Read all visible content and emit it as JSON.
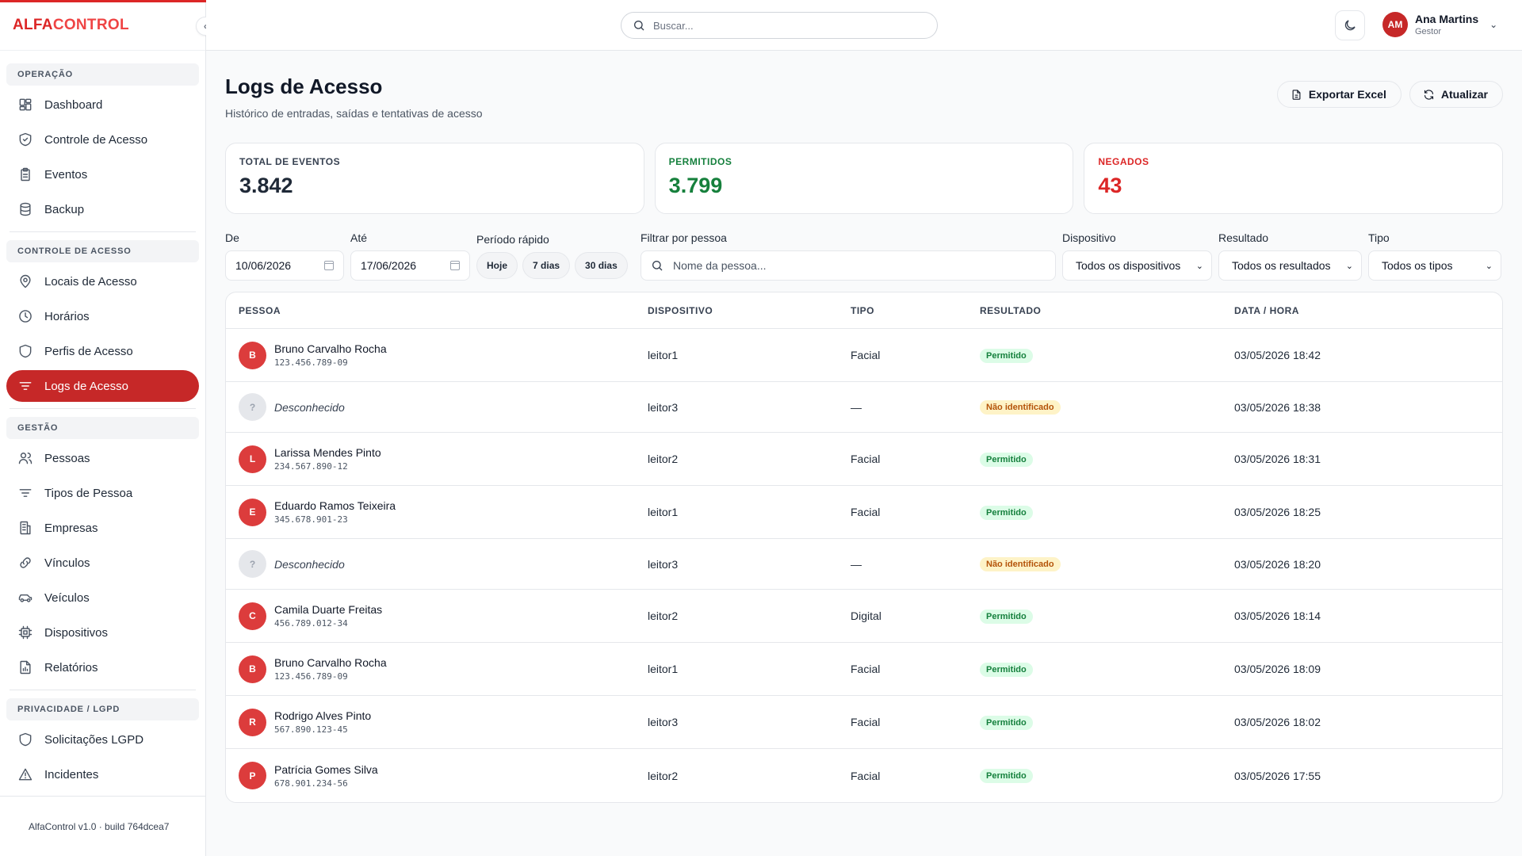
{
  "brand": {
    "part1": "ALFA",
    "part2": "CONTROL"
  },
  "sidebar": {
    "collapse_icon": "‹",
    "sections": [
      {
        "title": "OPERAÇÃO",
        "items": [
          {
            "label": "Dashboard",
            "icon": "dashboard-icon"
          },
          {
            "label": "Controle de Acesso",
            "icon": "shield-check-icon"
          },
          {
            "label": "Eventos",
            "icon": "clipboard-icon"
          },
          {
            "label": "Backup",
            "icon": "database-icon"
          }
        ]
      },
      {
        "title": "CONTROLE DE ACESSO",
        "items": [
          {
            "label": "Locais de Acesso",
            "icon": "map-pin-icon"
          },
          {
            "label": "Horários",
            "icon": "clock-icon"
          },
          {
            "label": "Perfis de Acesso",
            "icon": "shield-icon"
          },
          {
            "label": "Logs de Acesso",
            "icon": "filter-icon",
            "active": true
          }
        ]
      },
      {
        "title": "GESTÃO",
        "items": [
          {
            "label": "Pessoas",
            "icon": "users-icon"
          },
          {
            "label": "Tipos de Pessoa",
            "icon": "filter-icon"
          },
          {
            "label": "Empresas",
            "icon": "building-icon"
          },
          {
            "label": "Vínculos",
            "icon": "link-icon"
          },
          {
            "label": "Veículos",
            "icon": "car-icon"
          },
          {
            "label": "Dispositivos",
            "icon": "chip-icon"
          },
          {
            "label": "Relatórios",
            "icon": "report-icon"
          }
        ]
      },
      {
        "title": "PRIVACIDADE / LGPD",
        "items": [
          {
            "label": "Solicitações LGPD",
            "icon": "shield-icon"
          },
          {
            "label": "Incidentes",
            "icon": "alert-triangle-icon"
          }
        ]
      }
    ],
    "footer": "AlfaControl v1.0 · build 764dcea7"
  },
  "topbar": {
    "search_placeholder": "Buscar...",
    "user": {
      "initials": "AM",
      "name": "Ana Martins",
      "role": "Gestor"
    }
  },
  "page": {
    "title": "Logs de Acesso",
    "subtitle": "Histórico de entradas, saídas e tentativas de acesso",
    "export_label": "Exportar Excel",
    "refresh_label": "Atualizar"
  },
  "stats": [
    {
      "label": "TOTAL DE EVENTOS",
      "value": "3.842",
      "kind": "total"
    },
    {
      "label": "PERMITIDOS",
      "value": "3.799",
      "kind": "ok"
    },
    {
      "label": "NEGADOS",
      "value": "43",
      "kind": "bad"
    }
  ],
  "filters": {
    "from_label": "De",
    "from_value": "10/06/2026",
    "to_label": "Até",
    "to_value": "17/06/2026",
    "quick_label": "Período rápido",
    "quick": [
      "Hoje",
      "7 dias",
      "30 dias"
    ],
    "person_label": "Filtrar por pessoa",
    "person_placeholder": "Nome da pessoa...",
    "device_label": "Dispositivo",
    "device_value": "Todos os dispositivos",
    "result_label": "Resultado",
    "result_value": "Todos os resultados",
    "type_label": "Tipo",
    "type_value": "Todos os tipos"
  },
  "table": {
    "headers": [
      "PESSOA",
      "DISPOSITIVO",
      "TIPO",
      "RESULTADO",
      "DATA / HORA"
    ],
    "rows": [
      {
        "initial": "B",
        "name": "Bruno Carvalho Rocha",
        "doc": "123.456.789-09",
        "device": "leitor1",
        "type": "Facial",
        "result": "Permitido",
        "status": "ok",
        "datetime": "03/05/2026 18:42"
      },
      {
        "initial": "?",
        "name": "Desconhecido",
        "doc": "",
        "device": "leitor3",
        "type": "—",
        "result": "Não identificado",
        "status": "warn",
        "datetime": "03/05/2026 18:38"
      },
      {
        "initial": "L",
        "name": "Larissa Mendes Pinto",
        "doc": "234.567.890-12",
        "device": "leitor2",
        "type": "Facial",
        "result": "Permitido",
        "status": "ok",
        "datetime": "03/05/2026 18:31"
      },
      {
        "initial": "E",
        "name": "Eduardo Ramos Teixeira",
        "doc": "345.678.901-23",
        "device": "leitor1",
        "type": "Facial",
        "result": "Permitido",
        "status": "ok",
        "datetime": "03/05/2026 18:25"
      },
      {
        "initial": "?",
        "name": "Desconhecido",
        "doc": "",
        "device": "leitor3",
        "type": "—",
        "result": "Não identificado",
        "status": "warn",
        "datetime": "03/05/2026 18:20"
      },
      {
        "initial": "C",
        "name": "Camila Duarte Freitas",
        "doc": "456.789.012-34",
        "device": "leitor2",
        "type": "Digital",
        "result": "Permitido",
        "status": "ok",
        "datetime": "03/05/2026 18:14"
      },
      {
        "initial": "B",
        "name": "Bruno Carvalho Rocha",
        "doc": "123.456.789-09",
        "device": "leitor1",
        "type": "Facial",
        "result": "Permitido",
        "status": "ok",
        "datetime": "03/05/2026 18:09"
      },
      {
        "initial": "R",
        "name": "Rodrigo Alves Pinto",
        "doc": "567.890.123-45",
        "device": "leitor3",
        "type": "Facial",
        "result": "Permitido",
        "status": "ok",
        "datetime": "03/05/2026 18:02"
      },
      {
        "initial": "P",
        "name": "Patrícia Gomes Silva",
        "doc": "678.901.234-56",
        "device": "leitor2",
        "type": "Facial",
        "result": "Permitido",
        "status": "ok",
        "datetime": "03/05/2026 17:55"
      }
    ]
  }
}
